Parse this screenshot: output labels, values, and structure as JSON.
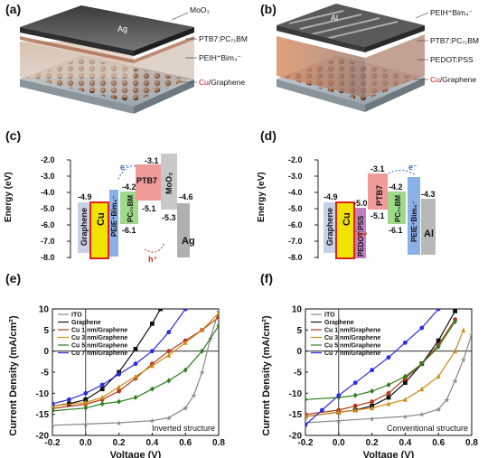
{
  "panels": {
    "a": {
      "tag": "(a)",
      "electrode_label": "Ag",
      "layers": [
        "MoO₃",
        "PTB7:PC₇₁BM",
        "PEIH⁺Bim₄⁻"
      ],
      "bottom_prefix": "Cu",
      "bottom_suffix": "/Graphene"
    },
    "b": {
      "tag": "(b)",
      "electrode_label": "Al",
      "layers": [
        "PEIH⁺Bim₄⁻",
        "PTB7:PC₇₁BM",
        "PEDOT:PSS"
      ],
      "bottom_prefix": "Cu",
      "bottom_suffix": "/Graphene"
    },
    "c": {
      "tag": "(c)",
      "ylabel": "Energy (eV)",
      "yticks": [
        "-2.0",
        "-3.0",
        "-4.0",
        "-5.0",
        "-6.0",
        "-7.0",
        "-8.0"
      ],
      "blocks": [
        "Graphene",
        "Cu",
        "PEIE⁺Bim₄⁻",
        "PC₇₁BM",
        "PTB7",
        "MoO₃",
        "Ag"
      ],
      "levels": [
        "-4.9",
        "-4.2",
        "-6.1",
        "-3.1",
        "-5.1",
        "-5.3",
        "-4.6"
      ],
      "carriers": [
        "e⁻",
        "h⁺"
      ]
    },
    "d": {
      "tag": "(d)",
      "ylabel": "Energy (eV)",
      "yticks": [
        "-2.0",
        "-3.0",
        "-4.0",
        "-5.0",
        "-6.0",
        "-7.0",
        "-8.0"
      ],
      "blocks": [
        "Graphene",
        "Cu",
        "PEDOT:PSS",
        "PTB7",
        "PC₇₁BM",
        "PEIE⁺Bim₄⁻",
        "Al"
      ],
      "levels": [
        "-4.9",
        "-5.0",
        "-3.1",
        "-5.1",
        "-4.2",
        "-6.1",
        "-4.3"
      ],
      "carriers": [
        "e⁻",
        "h⁺"
      ]
    }
  },
  "chart_data": [
    {
      "type": "line",
      "tag": "(e)",
      "xlabel": "Voltage (V)",
      "ylabel": "Current Density (mA/cm²)",
      "xlim": [
        -0.2,
        0.8
      ],
      "ylim": [
        -20,
        10
      ],
      "xticks": [
        "-0.2",
        "0.0",
        "0.2",
        "0.4",
        "0.6",
        "0.8"
      ],
      "yticks": [
        "10",
        "5",
        "0",
        "-5",
        "-10",
        "-15",
        "-20"
      ],
      "annotation": "Inverted structure",
      "legend_position": "top-left",
      "series": [
        {
          "name": "ITO",
          "color": "#888888",
          "marker": "star",
          "x": [
            -0.2,
            0.0,
            0.2,
            0.4,
            0.5,
            0.6,
            0.65,
            0.7,
            0.75,
            0.8
          ],
          "y": [
            -17.6,
            -17.3,
            -17.0,
            -16.5,
            -15.8,
            -13.5,
            -10.5,
            -5.0,
            3.0,
            9.5
          ]
        },
        {
          "name": "Graphene",
          "color": "#111111",
          "marker": "square",
          "x": [
            -0.2,
            -0.1,
            0.0,
            0.1,
            0.2,
            0.3,
            0.4,
            0.45
          ],
          "y": [
            -13.0,
            -12.5,
            -11.5,
            -9.0,
            -5.0,
            0.5,
            6.5,
            10.0
          ]
        },
        {
          "name": "Cu 1 nm/Graphene",
          "color": "#b03a1a",
          "marker": "circle",
          "x": [
            -0.2,
            0.0,
            0.1,
            0.2,
            0.3,
            0.4,
            0.5,
            0.6,
            0.7,
            0.8
          ],
          "y": [
            -13.6,
            -12.6,
            -11.5,
            -9.5,
            -6.5,
            -3.0,
            0.0,
            2.5,
            5.0,
            8.0
          ]
        },
        {
          "name": "Cu 3 nm/Graphene",
          "color": "#d08a1a",
          "marker": "triangle",
          "x": [
            -0.2,
            0.0,
            0.1,
            0.2,
            0.3,
            0.4,
            0.5,
            0.6,
            0.7,
            0.8
          ],
          "y": [
            -13.0,
            -12.2,
            -11.0,
            -8.5,
            -6.0,
            -3.5,
            -1.0,
            2.0,
            5.0,
            9.0
          ]
        },
        {
          "name": "Cu 5 nm/Graphene",
          "color": "#2e7d1c",
          "marker": "diamond",
          "x": [
            -0.2,
            0.0,
            0.1,
            0.2,
            0.3,
            0.4,
            0.5,
            0.6,
            0.7,
            0.8
          ],
          "y": [
            -14.2,
            -13.5,
            -12.5,
            -12.0,
            -11.0,
            -9.0,
            -7.0,
            -4.5,
            0.0,
            6.0
          ]
        },
        {
          "name": "Cu 7 nm/Graphene",
          "color": "#2a2ae0",
          "marker": "circle",
          "x": [
            -0.2,
            -0.1,
            0.0,
            0.1,
            0.2,
            0.3,
            0.4,
            0.5,
            0.6
          ],
          "y": [
            -12.5,
            -11.5,
            -10.0,
            -8.0,
            -5.5,
            -3.0,
            0.0,
            4.5,
            10.0
          ]
        }
      ]
    },
    {
      "type": "line",
      "tag": "(f)",
      "xlabel": "Voltage (V)",
      "ylabel": "Current Density (mA/cm²)",
      "xlim": [
        -0.2,
        0.8
      ],
      "ylim": [
        -20,
        10
      ],
      "xticks": [
        "-0.2",
        "0.0",
        "0.2",
        "0.4",
        "0.6",
        "0.8"
      ],
      "yticks": [
        "10",
        "5",
        "0",
        "-5",
        "-10",
        "-15",
        "-20"
      ],
      "annotation": "Conventional structure",
      "legend_position": "top-left",
      "series": [
        {
          "name": "ITO",
          "color": "#888888",
          "marker": "star",
          "x": [
            -0.2,
            0.0,
            0.2,
            0.4,
            0.5,
            0.6,
            0.65,
            0.7,
            0.75,
            0.8
          ],
          "y": [
            -17.0,
            -16.5,
            -16.0,
            -15.5,
            -15.0,
            -13.8,
            -11.5,
            -7.0,
            -2.0,
            4.0
          ]
        },
        {
          "name": "Graphene",
          "color": "#111111",
          "marker": "square",
          "x": [
            -0.2,
            0.0,
            0.1,
            0.2,
            0.3,
            0.4,
            0.5,
            0.6,
            0.7
          ],
          "y": [
            -15.5,
            -14.5,
            -14.0,
            -13.0,
            -11.0,
            -7.5,
            -3.0,
            2.5,
            9.5
          ]
        },
        {
          "name": "Cu 1 nm/Graphene",
          "color": "#b03a1a",
          "marker": "circle",
          "x": [
            -0.2,
            0.0,
            0.1,
            0.2,
            0.3,
            0.4,
            0.5,
            0.6,
            0.7
          ],
          "y": [
            -15.0,
            -14.0,
            -13.0,
            -12.0,
            -10.0,
            -6.5,
            -3.0,
            1.5,
            7.5
          ]
        },
        {
          "name": "Cu 3 nm/Graphene",
          "color": "#d08a1a",
          "marker": "triangle",
          "x": [
            -0.2,
            0.0,
            0.1,
            0.2,
            0.3,
            0.4,
            0.5,
            0.6,
            0.7,
            0.75
          ],
          "y": [
            -15.5,
            -14.5,
            -14.0,
            -13.5,
            -12.5,
            -11.5,
            -9.0,
            -6.0,
            0.0,
            5.0
          ]
        },
        {
          "name": "Cu 5 nm/Graphene",
          "color": "#2e7d1c",
          "marker": "diamond",
          "x": [
            -0.2,
            0.0,
            0.1,
            0.2,
            0.3,
            0.4,
            0.5,
            0.6,
            0.7
          ],
          "y": [
            -11.5,
            -11.0,
            -10.5,
            -9.5,
            -8.0,
            -6.0,
            -3.0,
            1.0,
            7.0
          ]
        },
        {
          "name": "Cu 7 nm/Graphene",
          "color": "#2a2ae0",
          "marker": "circle",
          "x": [
            -0.2,
            -0.1,
            0.0,
            0.1,
            0.2,
            0.3,
            0.4,
            0.5,
            0.6
          ],
          "y": [
            -17.5,
            -14.0,
            -10.5,
            -7.5,
            -4.5,
            -1.5,
            2.0,
            5.5,
            10.0
          ]
        }
      ]
    }
  ]
}
